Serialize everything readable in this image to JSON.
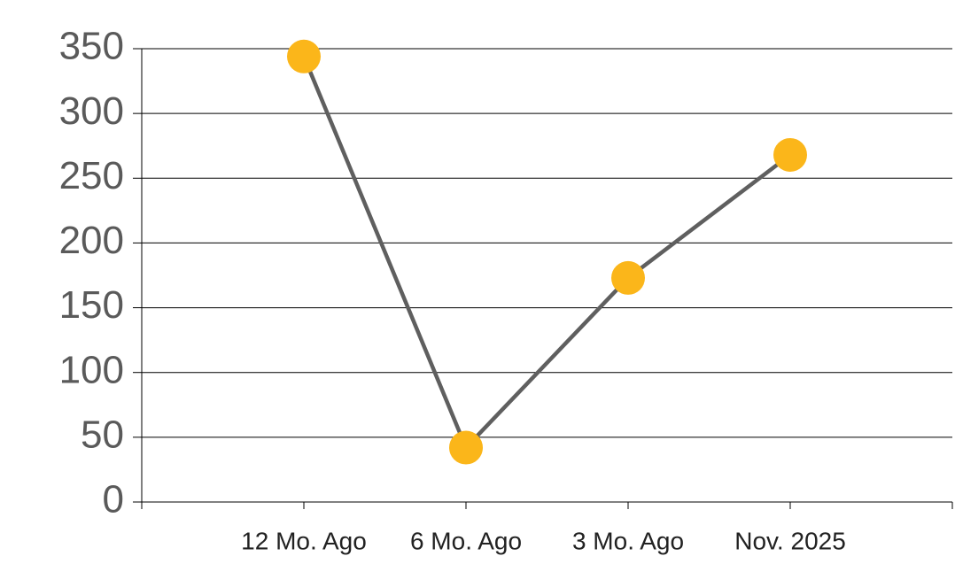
{
  "chart_data": {
    "type": "line",
    "categories": [
      null,
      "12 Mo. Ago",
      "6 Mo. Ago",
      "3 Mo. Ago",
      "Nov. 2025",
      null
    ],
    "series": [
      {
        "name": null,
        "color": "#5f5f5f",
        "marker_color": "#fbb61a",
        "values": [
          null,
          344,
          42,
          173,
          268,
          null
        ]
      }
    ],
    "ylim": [
      0,
      350
    ],
    "yticks": [
      0,
      50,
      100,
      150,
      200,
      250,
      300,
      350
    ],
    "grid": true
  }
}
